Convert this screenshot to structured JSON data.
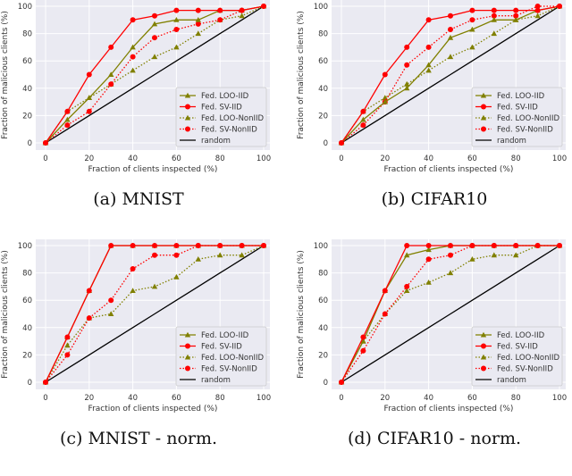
{
  "chart_data": [
    {
      "type": "line",
      "caption": "(a) MNIST",
      "xlabel": "Fraction of clients inspected (%)",
      "ylabel": "Fraction of malicious clients (%)",
      "xlim": [
        0,
        100
      ],
      "ylim": [
        0,
        100
      ],
      "xticks": [
        0,
        20,
        40,
        60,
        80,
        100
      ],
      "yticks": [
        0,
        20,
        40,
        60,
        80,
        100
      ],
      "grid": true,
      "legend": "bottom-right",
      "x": [
        0,
        10,
        20,
        30,
        40,
        50,
        60,
        70,
        80,
        90,
        100
      ],
      "series": [
        {
          "name": "Fed. LOO-IID",
          "color": "#808000",
          "style": "solid",
          "marker": "triangle",
          "values": [
            0,
            17,
            33,
            50,
            70,
            87,
            90,
            90,
            97,
            97,
            100
          ]
        },
        {
          "name": "Fed. SV-IID",
          "color": "#ff0000",
          "style": "solid",
          "marker": "circle",
          "values": [
            0,
            23,
            50,
            70,
            90,
            93,
            97,
            97,
            97,
            97,
            100
          ]
        },
        {
          "name": "Fed. LOO-NonIID",
          "color": "#808000",
          "style": "dotted",
          "marker": "triangle",
          "values": [
            0,
            23,
            33,
            43,
            53,
            63,
            70,
            80,
            90,
            93,
            100
          ]
        },
        {
          "name": "Fed. SV-NonIID",
          "color": "#ff0000",
          "style": "dotted",
          "marker": "circle",
          "values": [
            0,
            13,
            23,
            43,
            63,
            77,
            83,
            87,
            90,
            97,
            100
          ]
        },
        {
          "name": "random",
          "color": "#000000",
          "style": "solid",
          "marker": "none",
          "values": [
            0,
            10,
            20,
            30,
            40,
            50,
            60,
            70,
            80,
            90,
            100
          ]
        }
      ]
    },
    {
      "type": "line",
      "caption": "(b) CIFAR10",
      "xlabel": "Fraction of clients inspected (%)",
      "ylabel": "Fraction of malicious clients (%)",
      "xlim": [
        0,
        100
      ],
      "ylim": [
        0,
        100
      ],
      "xticks": [
        0,
        20,
        40,
        60,
        80,
        100
      ],
      "yticks": [
        0,
        20,
        40,
        60,
        80,
        100
      ],
      "grid": true,
      "legend": "bottom-right",
      "x": [
        0,
        10,
        20,
        30,
        40,
        50,
        60,
        70,
        80,
        90,
        100
      ],
      "series": [
        {
          "name": "Fed. LOO-IID",
          "color": "#808000",
          "style": "solid",
          "marker": "triangle",
          "values": [
            0,
            17,
            30,
            40,
            57,
            77,
            83,
            90,
            90,
            97,
            100
          ]
        },
        {
          "name": "Fed. SV-IID",
          "color": "#ff0000",
          "style": "solid",
          "marker": "circle",
          "values": [
            0,
            23,
            50,
            70,
            90,
            93,
            97,
            97,
            97,
            97,
            100
          ]
        },
        {
          "name": "Fed. LOO-NonIID",
          "color": "#808000",
          "style": "dotted",
          "marker": "triangle",
          "values": [
            0,
            23,
            33,
            43,
            53,
            63,
            70,
            80,
            90,
            93,
            100
          ]
        },
        {
          "name": "Fed. SV-NonIID",
          "color": "#ff0000",
          "style": "dotted",
          "marker": "circle",
          "values": [
            0,
            13,
            30,
            57,
            70,
            83,
            90,
            93,
            93,
            100,
            100
          ]
        },
        {
          "name": "random",
          "color": "#000000",
          "style": "solid",
          "marker": "none",
          "values": [
            0,
            10,
            20,
            30,
            40,
            50,
            60,
            70,
            80,
            90,
            100
          ]
        }
      ]
    },
    {
      "type": "line",
      "caption": "(c) MNIST - norm.",
      "xlabel": "Fraction of clients inspected (%)",
      "ylabel": "Fraction of malicious clients (%)",
      "xlim": [
        0,
        100
      ],
      "ylim": [
        0,
        100
      ],
      "xticks": [
        0,
        20,
        40,
        60,
        80,
        100
      ],
      "yticks": [
        0,
        20,
        40,
        60,
        80,
        100
      ],
      "grid": true,
      "legend": "bottom-right",
      "x": [
        0,
        10,
        20,
        30,
        40,
        50,
        60,
        70,
        80,
        90,
        100
      ],
      "series": [
        {
          "name": "Fed. LOO-IID",
          "color": "#808000",
          "style": "solid",
          "marker": "triangle",
          "values": [
            0,
            33,
            67,
            100,
            100,
            100,
            100,
            100,
            100,
            100,
            100
          ]
        },
        {
          "name": "Fed. SV-IID",
          "color": "#ff0000",
          "style": "solid",
          "marker": "circle",
          "values": [
            0,
            33,
            67,
            100,
            100,
            100,
            100,
            100,
            100,
            100,
            100
          ]
        },
        {
          "name": "Fed. LOO-NonIID",
          "color": "#808000",
          "style": "dotted",
          "marker": "triangle",
          "values": [
            0,
            27,
            47,
            50,
            67,
            70,
            77,
            90,
            93,
            93,
            100
          ]
        },
        {
          "name": "Fed. SV-NonIID",
          "color": "#ff0000",
          "style": "dotted",
          "marker": "circle",
          "values": [
            0,
            20,
            47,
            60,
            83,
            93,
            93,
            100,
            100,
            100,
            100
          ]
        },
        {
          "name": "random",
          "color": "#000000",
          "style": "solid",
          "marker": "none",
          "values": [
            0,
            10,
            20,
            30,
            40,
            50,
            60,
            70,
            80,
            90,
            100
          ]
        }
      ]
    },
    {
      "type": "line",
      "caption": "(d) CIFAR10 - norm.",
      "xlabel": "Fraction of clients inspected (%)",
      "ylabel": "Fraction of malicious clients (%)",
      "xlim": [
        0,
        100
      ],
      "ylim": [
        0,
        100
      ],
      "xticks": [
        0,
        20,
        40,
        60,
        80,
        100
      ],
      "yticks": [
        0,
        20,
        40,
        60,
        80,
        100
      ],
      "grid": true,
      "legend": "bottom-right",
      "x": [
        0,
        10,
        20,
        30,
        40,
        50,
        60,
        70,
        80,
        90,
        100
      ],
      "series": [
        {
          "name": "Fed. LOO-IID",
          "color": "#808000",
          "style": "solid",
          "marker": "triangle",
          "values": [
            0,
            30,
            67,
            93,
            97,
            100,
            100,
            100,
            100,
            100,
            100
          ]
        },
        {
          "name": "Fed. SV-IID",
          "color": "#ff0000",
          "style": "solid",
          "marker": "circle",
          "values": [
            0,
            33,
            67,
            100,
            100,
            100,
            100,
            100,
            100,
            100,
            100
          ]
        },
        {
          "name": "Fed. LOO-NonIID",
          "color": "#808000",
          "style": "dotted",
          "marker": "triangle",
          "values": [
            0,
            30,
            50,
            67,
            73,
            80,
            90,
            93,
            93,
            100,
            100
          ]
        },
        {
          "name": "Fed. SV-NonIID",
          "color": "#ff0000",
          "style": "dotted",
          "marker": "circle",
          "values": [
            0,
            23,
            50,
            70,
            90,
            93,
            100,
            100,
            100,
            100,
            100
          ]
        },
        {
          "name": "random",
          "color": "#000000",
          "style": "solid",
          "marker": "none",
          "values": [
            0,
            10,
            20,
            30,
            40,
            50,
            60,
            70,
            80,
            90,
            100
          ]
        }
      ]
    }
  ]
}
